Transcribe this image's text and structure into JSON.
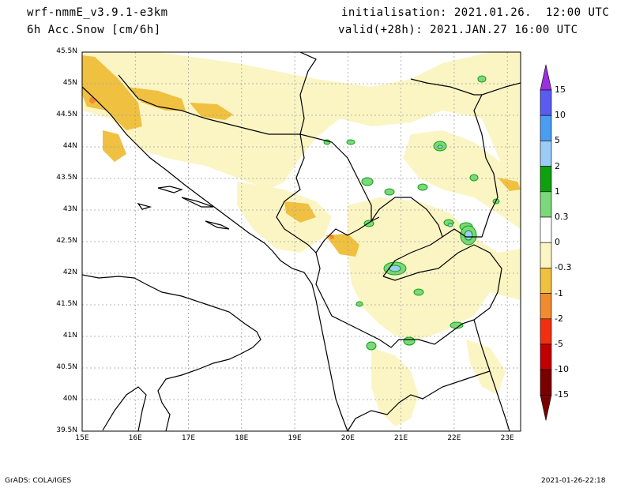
{
  "header": {
    "model": "wrf-nmmE_v3.9.1-e3km",
    "variable": "6h Acc.Snow [cm/6h]",
    "initialisation": "initialisation: 2021.01.26.  12:00 UTC",
    "valid": "valid(+28h): 2021.JAN.27 16:00 UTC"
  },
  "footer": {
    "credit": "GrADS: COLA/IGES",
    "timestamp": "2021-01-26-22:18"
  },
  "axes": {
    "lat_labels": [
      "45.5N",
      "45N",
      "44.5N",
      "44N",
      "43.5N",
      "43N",
      "42.5N",
      "42N",
      "41.5N",
      "41N",
      "40.5N",
      "40N",
      "39.5N"
    ],
    "lon_labels": [
      "15E",
      "16E",
      "17E",
      "18E",
      "19E",
      "20E",
      "21E",
      "22E",
      "23E"
    ],
    "lat_range": [
      39.5,
      45.5
    ],
    "lon_range": [
      15,
      23.25
    ]
  },
  "colorbar": {
    "labels": [
      "15",
      "10",
      "5",
      "2",
      "1",
      "0.3",
      "0",
      "-0.3",
      "-1",
      "-2",
      "-5",
      "-10",
      "-15"
    ],
    "colors": [
      "#5a5cf0",
      "#4b9df0",
      "#9ccdf7",
      "#0fa010",
      "#7bd87b",
      "#ffffff",
      "#fbf5c4",
      "#f0c040",
      "#f08c30",
      "#f03010",
      "#c00000",
      "#7a0000"
    ],
    "top_arrow_color": "#9a30e0",
    "bottom_arrow_color": "#7a0000"
  },
  "colors": {
    "light_snow": "#fbf5c4",
    "moderate_snow": "#f0c040",
    "heavy_snow": "#f08c30",
    "positive_low": "#7bd87b",
    "positive_mid": "#0fa010",
    "positive_high": "#9ccdf7",
    "positive_top": "#4b9df0"
  }
}
